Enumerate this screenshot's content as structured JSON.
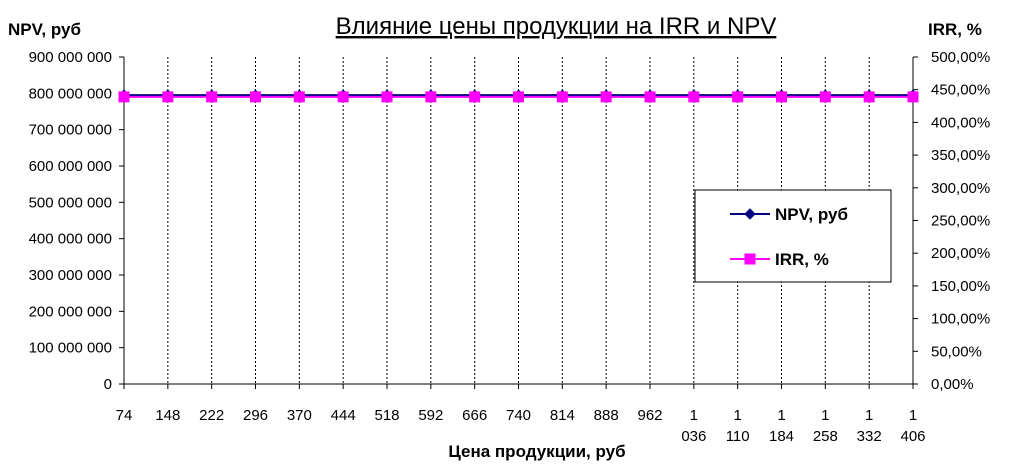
{
  "chart_data": {
    "type": "line",
    "title": "Влияние цены продукции на IRR и NPV",
    "xlabel": "Цена продукции,  руб",
    "ylabel_left": "NPV, руб",
    "ylabel_right": "IRR, %",
    "categories": [
      [
        "74"
      ],
      [
        "148"
      ],
      [
        "222"
      ],
      [
        "296"
      ],
      [
        "370"
      ],
      [
        "444"
      ],
      [
        "518"
      ],
      [
        "592"
      ],
      [
        "666"
      ],
      [
        "740"
      ],
      [
        "814"
      ],
      [
        "888"
      ],
      [
        "962"
      ],
      [
        "1",
        "036"
      ],
      [
        "1",
        "110"
      ],
      [
        "1",
        "184"
      ],
      [
        "1",
        "258"
      ],
      [
        "1",
        "332"
      ],
      [
        "1",
        "406"
      ]
    ],
    "ylim_left": [
      0,
      900000000
    ],
    "yticks_left": [
      "0",
      "100 000 000",
      "200 000 000",
      "300 000 000",
      "400 000 000",
      "500 000 000",
      "600 000 000",
      "700 000 000",
      "800 000 000",
      "900 000 000"
    ],
    "ylim_right": [
      0,
      500
    ],
    "yticks_right": [
      "0,00%",
      "50,00%",
      "100,00%",
      "150,00%",
      "200,00%",
      "250,00%",
      "300,00%",
      "350,00%",
      "400,00%",
      "450,00%",
      "500,00%"
    ],
    "grid_x": "dashed vertical",
    "legend_position": "right",
    "series": [
      {
        "name": "NPV, руб",
        "axis": "left",
        "color": "#000080",
        "marker": "diamond",
        "values": [
          795000000,
          795000000,
          795000000,
          795000000,
          795000000,
          795000000,
          795000000,
          795000000,
          795000000,
          795000000,
          795000000,
          795000000,
          795000000,
          795000000,
          795000000,
          795000000,
          795000000,
          795000000,
          795000000
        ]
      },
      {
        "name": "IRR, %",
        "axis": "right",
        "color": "#FF00FF",
        "marker": "square",
        "values": [
          439,
          439,
          439,
          439,
          439,
          439,
          439,
          439,
          439,
          439,
          439,
          439,
          439,
          439,
          439,
          439,
          439,
          439,
          439
        ]
      }
    ]
  }
}
